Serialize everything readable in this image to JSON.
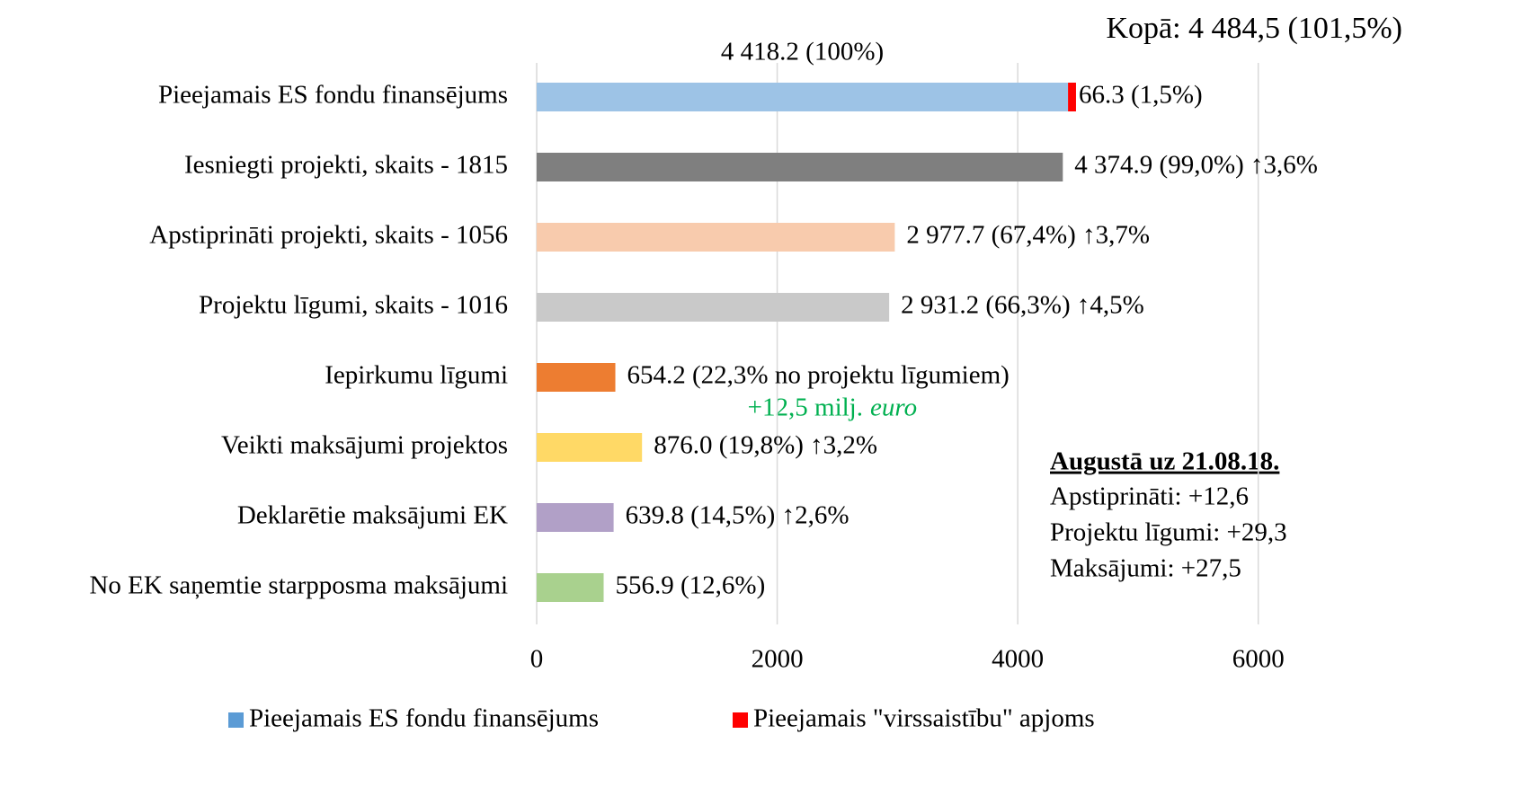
{
  "chart_data": {
    "type": "bar",
    "orientation": "horizontal",
    "title": "Kopā: 4 484,5 (101,5%)",
    "categories": [
      "Pieejamais ES fondu finansējums",
      "Iesniegti projekti, skaits - 1815",
      "Apstiprināti projekti, skaits - 1056",
      "Projektu līgumi, skaits - 1016",
      "Iepirkumu līgumi",
      "Veikti maksājumi projektos",
      "Deklarētie maksājumi EK",
      "No EK saņemtie starpposma maksājumi"
    ],
    "series": [
      {
        "name": "Pieejamais ES fondu finansējums",
        "color": "#5b9bd5",
        "bar_colors": [
          "#9dc3e6",
          "#7f7f7f",
          "#f8cbad",
          "#c9c9c9",
          "#ed7d31",
          "#ffd966",
          "#b1a0c7",
          "#a9d18e"
        ],
        "values": [
          4418.2,
          4374.9,
          2977.7,
          2931.2,
          654.2,
          876.0,
          639.8,
          556.9
        ],
        "value_labels": [
          "4 418.2 (100%)",
          "4 374.9 (99,0%) ↑3,6%",
          "2 977.7 (67,4%) ↑3,7%",
          "2 931.2 (66,3%) ↑4,5%",
          "654.2 (22,3% no projektu līgumiem)",
          "876.0 (19,8%) ↑3,2%",
          "639.8 (14,5%) ↑2,6%",
          "556.9 (12,6%)"
        ]
      },
      {
        "name": "Pieejamais \"virssaistību\" apjoms",
        "color": "#ff0000",
        "values": [
          66.3,
          null,
          null,
          null,
          null,
          null,
          null,
          null
        ],
        "value_labels": [
          "66.3 (1,5%)",
          null,
          null,
          null,
          null,
          null,
          null,
          null
        ]
      }
    ],
    "annotations": {
      "procurement_change": "+12,5 milj.",
      "procurement_unit": "euro"
    },
    "info_box": {
      "title": "Augustā uz 21.08.18.",
      "lines": [
        "Apstiprināti: +12,6",
        "Projektu līgumi: +29,3",
        "Maksājumi: +27,5"
      ]
    },
    "xlim": [
      0,
      7000
    ],
    "xticks": [
      0,
      2000,
      4000,
      6000
    ],
    "grid": true,
    "legend": "bottom"
  }
}
